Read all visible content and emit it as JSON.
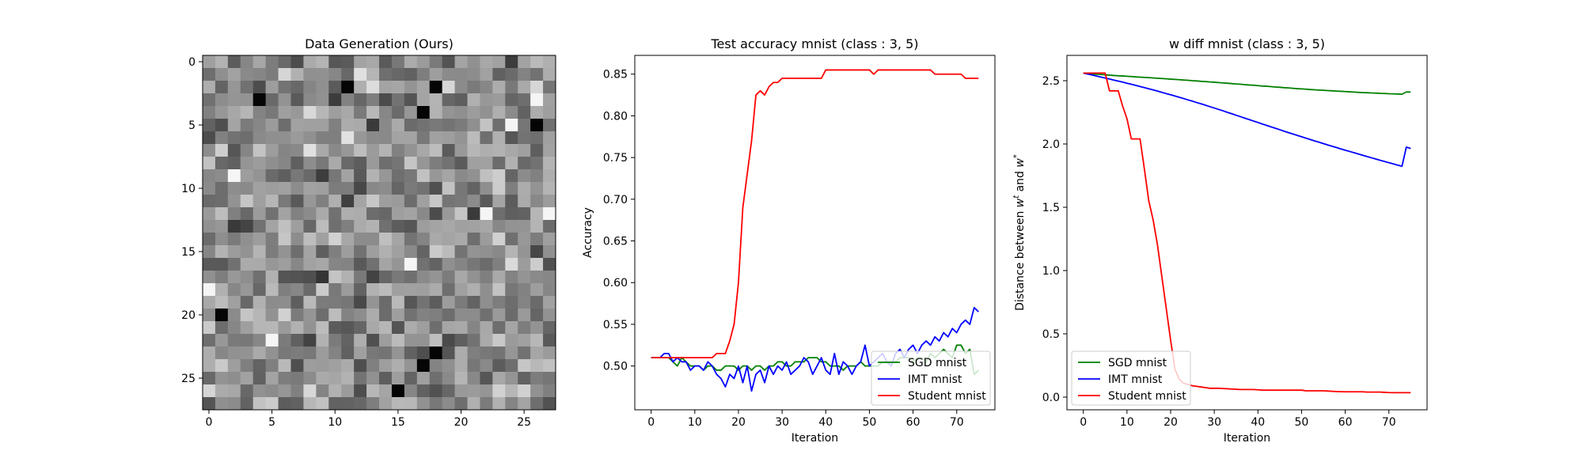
{
  "chart_data": [
    {
      "type": "heatmap",
      "title": "Data Generation (Ours)",
      "colormap": "gray",
      "rows": 28,
      "cols": 28,
      "xticks": [
        0,
        5,
        10,
        15,
        20,
        25
      ],
      "yticks": [
        0,
        5,
        10,
        15,
        20,
        25
      ],
      "xlim": [
        -0.5,
        27.5
      ],
      "ylim": [
        27.5,
        -0.5
      ],
      "seed": 20231,
      "dark_cells": [
        [
          2,
          11
        ],
        [
          2,
          18
        ],
        [
          3,
          4
        ],
        [
          4,
          17
        ],
        [
          23,
          18
        ],
        [
          24,
          17
        ],
        [
          26,
          15
        ],
        [
          5,
          26
        ],
        [
          20,
          1
        ]
      ],
      "light_cells": [
        [
          9,
          2
        ],
        [
          12,
          22
        ],
        [
          12,
          27
        ],
        [
          16,
          16
        ],
        [
          18,
          0
        ],
        [
          22,
          5
        ],
        [
          5,
          24
        ],
        [
          3,
          26
        ]
      ]
    },
    {
      "type": "line",
      "title": "Test accuracy mnist (class : 3, 5)",
      "xlabel": "Iteration",
      "ylabel": "Accuracy",
      "xlim": [
        -3.75,
        78.75
      ],
      "ylim": [
        0.4475,
        0.8725
      ],
      "xticks": [
        0,
        10,
        20,
        30,
        40,
        50,
        60,
        70
      ],
      "yticks": [
        0.5,
        0.55,
        0.6,
        0.65,
        0.7,
        0.75,
        0.8,
        0.85
      ],
      "legend_position": "lower-right",
      "series": [
        {
          "name": "SGD mnist",
          "color": "#008000",
          "values": [
            0.51,
            0.51,
            0.51,
            0.51,
            0.51,
            0.505,
            0.5,
            0.51,
            0.505,
            0.5,
            0.5,
            0.5,
            0.495,
            0.5,
            0.5,
            0.495,
            0.495,
            0.5,
            0.5,
            0.5,
            0.495,
            0.5,
            0.5,
            0.495,
            0.5,
            0.5,
            0.495,
            0.5,
            0.5,
            0.505,
            0.505,
            0.5,
            0.5,
            0.505,
            0.505,
            0.505,
            0.51,
            0.51,
            0.51,
            0.505,
            0.505,
            0.5,
            0.5,
            0.5,
            0.495,
            0.5,
            0.5,
            0.5,
            0.505,
            0.5,
            0.5,
            0.5,
            0.5,
            0.505,
            0.505,
            0.505,
            0.505,
            0.51,
            0.51,
            0.51,
            0.505,
            0.51,
            0.51,
            0.505,
            0.515,
            0.51,
            0.515,
            0.52,
            0.515,
            0.51,
            0.525,
            0.525,
            0.515,
            0.52,
            0.49,
            0.495
          ]
        },
        {
          "name": "IMT mnist",
          "color": "#0000ff",
          "values": [
            0.51,
            0.51,
            0.51,
            0.515,
            0.515,
            0.505,
            0.51,
            0.505,
            0.505,
            0.495,
            0.5,
            0.5,
            0.495,
            0.505,
            0.5,
            0.49,
            0.485,
            0.475,
            0.49,
            0.485,
            0.5,
            0.48,
            0.5,
            0.47,
            0.49,
            0.495,
            0.48,
            0.5,
            0.49,
            0.5,
            0.495,
            0.505,
            0.49,
            0.495,
            0.5,
            0.51,
            0.505,
            0.49,
            0.5,
            0.51,
            0.495,
            0.49,
            0.515,
            0.49,
            0.505,
            0.5,
            0.49,
            0.5,
            0.505,
            0.525,
            0.5,
            0.505,
            0.51,
            0.515,
            0.505,
            0.5,
            0.515,
            0.52,
            0.51,
            0.52,
            0.525,
            0.515,
            0.525,
            0.53,
            0.525,
            0.535,
            0.53,
            0.54,
            0.535,
            0.545,
            0.54,
            0.55,
            0.555,
            0.55,
            0.57,
            0.565
          ]
        },
        {
          "name": "Student mnist",
          "color": "#ff0000",
          "values": [
            0.51,
            0.51,
            0.51,
            0.51,
            0.51,
            0.51,
            0.51,
            0.51,
            0.51,
            0.51,
            0.51,
            0.51,
            0.51,
            0.51,
            0.51,
            0.515,
            0.515,
            0.515,
            0.53,
            0.55,
            0.6,
            0.69,
            0.73,
            0.77,
            0.825,
            0.83,
            0.825,
            0.835,
            0.84,
            0.84,
            0.845,
            0.845,
            0.845,
            0.845,
            0.845,
            0.845,
            0.845,
            0.845,
            0.845,
            0.845,
            0.855,
            0.855,
            0.855,
            0.855,
            0.855,
            0.855,
            0.855,
            0.855,
            0.855,
            0.855,
            0.855,
            0.85,
            0.855,
            0.855,
            0.855,
            0.855,
            0.855,
            0.855,
            0.855,
            0.855,
            0.855,
            0.855,
            0.855,
            0.855,
            0.855,
            0.85,
            0.85,
            0.85,
            0.85,
            0.85,
            0.85,
            0.85,
            0.845,
            0.845,
            0.845,
            0.845
          ]
        }
      ]
    },
    {
      "type": "line",
      "title": "w diff mnist (class : 3, 5)",
      "xlabel": "Iteration",
      "ylabel": "Distance between w^t and w^*",
      "ylabel_parts": [
        "Distance between ",
        "w",
        "t",
        " and ",
        "w",
        "*"
      ],
      "xlim": [
        -3.75,
        78.75
      ],
      "ylim": [
        -0.1,
        2.7
      ],
      "xticks": [
        0,
        10,
        20,
        30,
        40,
        50,
        60,
        70
      ],
      "yticks": [
        0.0,
        0.5,
        1.0,
        1.5,
        2.0,
        2.5
      ],
      "legend_position": "lower-left",
      "series": [
        {
          "name": "SGD mnist",
          "color": "#008000",
          "values": [
            2.56,
            2.557,
            2.554,
            2.551,
            2.549,
            2.546,
            2.544,
            2.541,
            2.539,
            2.537,
            2.535,
            2.533,
            2.53,
            2.528,
            2.526,
            2.524,
            2.522,
            2.519,
            2.517,
            2.515,
            2.512,
            2.51,
            2.508,
            2.505,
            2.503,
            2.5,
            2.498,
            2.495,
            2.493,
            2.49,
            2.488,
            2.485,
            2.482,
            2.48,
            2.477,
            2.474,
            2.472,
            2.469,
            2.466,
            2.464,
            2.461,
            2.458,
            2.456,
            2.453,
            2.45,
            2.448,
            2.445,
            2.443,
            2.44,
            2.437,
            2.435,
            2.433,
            2.43,
            2.428,
            2.426,
            2.424,
            2.422,
            2.42,
            2.418,
            2.416,
            2.414,
            2.412,
            2.41,
            2.408,
            2.406,
            2.405,
            2.403,
            2.402,
            2.4,
            2.399,
            2.397,
            2.396,
            2.395,
            2.393,
            2.411,
            2.41
          ]
        },
        {
          "name": "IMT mnist",
          "color": "#0000ff",
          "values": [
            2.56,
            2.552,
            2.545,
            2.537,
            2.529,
            2.521,
            2.513,
            2.505,
            2.497,
            2.489,
            2.48,
            2.472,
            2.463,
            2.454,
            2.445,
            2.436,
            2.427,
            2.418,
            2.408,
            2.398,
            2.389,
            2.379,
            2.369,
            2.359,
            2.348,
            2.338,
            2.327,
            2.317,
            2.306,
            2.295,
            2.284,
            2.273,
            2.262,
            2.25,
            2.239,
            2.227,
            2.216,
            2.204,
            2.193,
            2.181,
            2.17,
            2.158,
            2.147,
            2.135,
            2.124,
            2.113,
            2.101,
            2.09,
            2.079,
            2.068,
            2.057,
            2.046,
            2.035,
            2.024,
            2.014,
            2.003,
            1.992,
            1.982,
            1.972,
            1.961,
            1.951,
            1.941,
            1.931,
            1.921,
            1.911,
            1.901,
            1.891,
            1.881,
            1.871,
            1.862,
            1.852,
            1.843,
            1.833,
            1.824,
            1.975,
            1.965
          ]
        },
        {
          "name": "Student mnist",
          "color": "#ff0000",
          "values": [
            2.56,
            2.56,
            2.56,
            2.56,
            2.56,
            2.56,
            2.42,
            2.42,
            2.42,
            2.3,
            2.2,
            2.04,
            2.04,
            2.04,
            1.8,
            1.55,
            1.4,
            1.2,
            0.95,
            0.7,
            0.45,
            0.22,
            0.14,
            0.11,
            0.1,
            0.09,
            0.085,
            0.08,
            0.075,
            0.07,
            0.07,
            0.07,
            0.068,
            0.066,
            0.064,
            0.062,
            0.06,
            0.06,
            0.06,
            0.06,
            0.058,
            0.056,
            0.055,
            0.055,
            0.055,
            0.055,
            0.055,
            0.055,
            0.055,
            0.055,
            0.055,
            0.05,
            0.05,
            0.05,
            0.05,
            0.05,
            0.048,
            0.046,
            0.044,
            0.043,
            0.042,
            0.042,
            0.042,
            0.042,
            0.042,
            0.04,
            0.04,
            0.04,
            0.04,
            0.038,
            0.036,
            0.035,
            0.035,
            0.035,
            0.035,
            0.035
          ]
        }
      ]
    }
  ]
}
